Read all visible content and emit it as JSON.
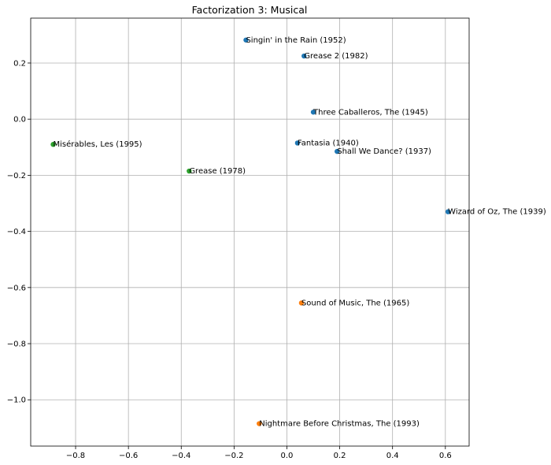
{
  "chart_data": {
    "type": "scatter",
    "title": "Factorization 3: Musical",
    "xlabel": "",
    "ylabel": "",
    "xlim": [
      -0.97,
      0.69
    ],
    "ylim": [
      -1.165,
      0.36
    ],
    "xticks": [
      -0.8,
      -0.6,
      -0.4,
      -0.2,
      0.0,
      0.2,
      0.4,
      0.6
    ],
    "xtick_labels": [
      "−0.8",
      "−0.6",
      "−0.4",
      "−0.2",
      "0.0",
      "0.2",
      "0.4",
      "0.6"
    ],
    "yticks": [
      -1.0,
      -0.8,
      -0.6,
      -0.4,
      -0.2,
      0.0,
      0.2
    ],
    "ytick_labels": [
      "−1.0",
      "−0.8",
      "−0.6",
      "−0.4",
      "−0.2",
      "0.0",
      "0.2"
    ],
    "grid": true,
    "colors": [
      "#1f77b4",
      "#ff7f0e",
      "#2ca02c"
    ],
    "points": [
      {
        "label": "Singin' in the Rain (1952)",
        "x": -0.155,
        "y": 0.282,
        "group": 0
      },
      {
        "label": "Grease 2 (1982)",
        "x": 0.065,
        "y": 0.225,
        "group": 0
      },
      {
        "label": "Three Caballeros, The (1945)",
        "x": 0.1,
        "y": 0.025,
        "group": 0
      },
      {
        "label": "Fantasia (1940)",
        "x": 0.04,
        "y": -0.085,
        "group": 0
      },
      {
        "label": "Shall We Dance? (1937)",
        "x": 0.19,
        "y": -0.115,
        "group": 0
      },
      {
        "label": "Wizard of Oz, The (1939)",
        "x": 0.61,
        "y": -0.33,
        "group": 0
      },
      {
        "label": "Sound of Music, The (1965)",
        "x": 0.055,
        "y": -0.655,
        "group": 1
      },
      {
        "label": "Nightmare Before Christmas, The (1993)",
        "x": -0.105,
        "y": -1.085,
        "group": 1
      },
      {
        "label": "Misérables, Les (1995)",
        "x": -0.885,
        "y": -0.09,
        "group": 2
      },
      {
        "label": "Grease (1978)",
        "x": -0.37,
        "y": -0.185,
        "group": 2
      }
    ]
  }
}
